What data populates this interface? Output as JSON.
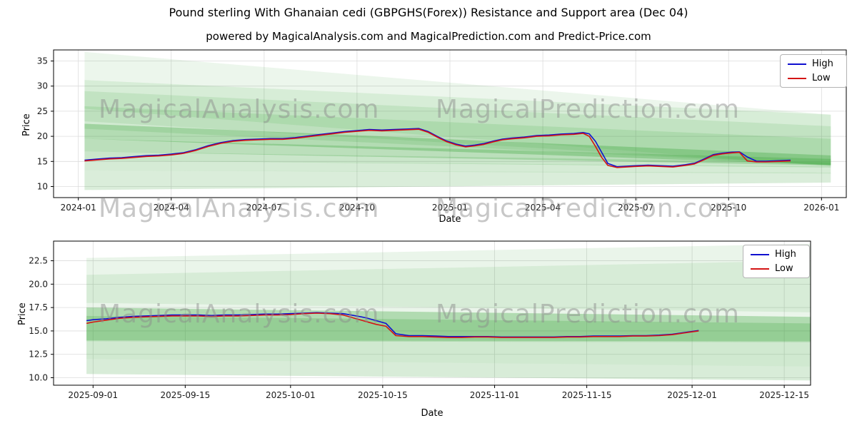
{
  "title": "Pound sterling With Ghanaian cedi (GBPGHS(Forex)) Resistance and Support area (Dec 04)",
  "subtitle": "powered by MagicalAnalysis.com and MagicalPrediction.com and Predict-Price.com",
  "watermark": {
    "analysis": "MagicalAnalysis.com",
    "prediction": "MagicalPrediction.com"
  },
  "chart_data": [
    {
      "type": "line",
      "title": "",
      "xlabel": "Date",
      "ylabel": "Price",
      "grid": true,
      "legend_position": "upper right",
      "band_color": "#30a030",
      "xlim": [
        -0.8,
        24.8
      ],
      "ylim": [
        7.8,
        37.2
      ],
      "x_ticks": [
        {
          "value": 0,
          "label": "2024-01"
        },
        {
          "value": 3,
          "label": "2024-04"
        },
        {
          "value": 6,
          "label": "2024-07"
        },
        {
          "value": 9,
          "label": "2024-10"
        },
        {
          "value": 12,
          "label": "2025-01"
        },
        {
          "value": 15,
          "label": "2025-04"
        },
        {
          "value": 18,
          "label": "2025-07"
        },
        {
          "value": 21,
          "label": "2025-10"
        },
        {
          "value": 24,
          "label": "2026-01"
        }
      ],
      "y_ticks": [
        {
          "value": 10,
          "label": "10"
        },
        {
          "value": 15,
          "label": "15"
        },
        {
          "value": 20,
          "label": "20"
        },
        {
          "value": 25,
          "label": "25"
        },
        {
          "value": 30,
          "label": "30"
        },
        {
          "value": 35,
          "label": "35"
        }
      ],
      "bands": [
        {
          "points": [
            [
              0.2,
              36.8
            ],
            [
              24.3,
              24.3
            ],
            [
              24.3,
              10.8
            ],
            [
              0.2,
              9.3
            ]
          ],
          "opacity": 0.09
        },
        {
          "points": [
            [
              0.2,
              31.2
            ],
            [
              24.3,
              24.3
            ],
            [
              24.3,
              14.0
            ],
            [
              0.2,
              25.5
            ]
          ],
          "opacity": 0.11
        },
        {
          "points": [
            [
              0.2,
              29.0
            ],
            [
              24.3,
              22.0
            ],
            [
              24.3,
              14.2
            ],
            [
              0.2,
              23.0
            ]
          ],
          "opacity": 0.12
        },
        {
          "points": [
            [
              0.2,
              26.0
            ],
            [
              24.3,
              19.5
            ],
            [
              24.3,
              14.3
            ],
            [
              0.2,
              21.5
            ]
          ],
          "opacity": 0.14
        },
        {
          "points": [
            [
              0.2,
              22.5
            ],
            [
              24.3,
              16.2
            ],
            [
              24.3,
              14.3
            ],
            [
              0.2,
              19.5
            ]
          ],
          "opacity": 0.3
        },
        {
          "points": [
            [
              0.2,
              19.5
            ],
            [
              24.3,
              15.5
            ],
            [
              24.3,
              14.2
            ],
            [
              0.2,
              17.0
            ]
          ],
          "opacity": 0.26
        },
        {
          "points": [
            [
              0.2,
              17.0
            ],
            [
              24.3,
              14.8
            ],
            [
              24.3,
              13.8
            ],
            [
              0.2,
              15.2
            ]
          ],
          "opacity": 0.18
        },
        {
          "points": [
            [
              0.2,
              15.2
            ],
            [
              24.3,
              14.0
            ],
            [
              24.3,
              12.6
            ],
            [
              0.2,
              13.2
            ]
          ],
          "opacity": 0.12
        },
        {
          "points": [
            [
              0.2,
              13.2
            ],
            [
              24.3,
              12.8
            ],
            [
              24.3,
              10.8
            ],
            [
              0.2,
              9.3
            ]
          ],
          "opacity": 0.09
        }
      ],
      "x": [
        0.2,
        0.6,
        1.0,
        1.4,
        1.8,
        2.2,
        2.6,
        3.0,
        3.4,
        3.8,
        4.2,
        4.6,
        5.0,
        5.4,
        5.8,
        6.2,
        6.6,
        7.0,
        7.4,
        7.8,
        8.2,
        8.6,
        9.0,
        9.4,
        9.8,
        10.2,
        10.6,
        11.0,
        11.3,
        11.6,
        11.9,
        12.2,
        12.5,
        12.8,
        13.1,
        13.4,
        13.7,
        14.0,
        14.4,
        14.8,
        15.2,
        15.6,
        16.0,
        16.3,
        16.5,
        16.7,
        16.9,
        17.1,
        17.4,
        17.7,
        18.0,
        18.4,
        18.8,
        19.2,
        19.6,
        19.9,
        20.2,
        20.5,
        20.8,
        21.1,
        21.35,
        21.6,
        21.9,
        22.2,
        22.6,
        23.0
      ],
      "series": [
        {
          "name": "High",
          "color": "#0f0fd0",
          "values": [
            15.25,
            15.45,
            15.65,
            15.75,
            15.95,
            16.15,
            16.25,
            16.45,
            16.75,
            17.35,
            18.15,
            18.75,
            19.15,
            19.35,
            19.45,
            19.55,
            19.55,
            19.75,
            20.05,
            20.35,
            20.65,
            20.95,
            21.15,
            21.35,
            21.25,
            21.35,
            21.45,
            21.55,
            20.95,
            19.95,
            19.05,
            18.45,
            18.05,
            18.25,
            18.55,
            19.05,
            19.45,
            19.65,
            19.85,
            20.15,
            20.25,
            20.45,
            20.55,
            20.75,
            20.5,
            19.0,
            16.8,
            14.6,
            13.95,
            14.05,
            14.15,
            14.25,
            14.15,
            14.05,
            14.35,
            14.65,
            15.45,
            16.35,
            16.65,
            16.85,
            16.9,
            15.9,
            15.05,
            15.05,
            15.15,
            15.25
          ]
        },
        {
          "name": "Low",
          "color": "#d41414",
          "values": [
            15.1,
            15.3,
            15.5,
            15.6,
            15.8,
            16.0,
            16.1,
            16.3,
            16.6,
            17.2,
            18.0,
            18.6,
            19.0,
            19.2,
            19.3,
            19.4,
            19.4,
            19.6,
            19.9,
            20.2,
            20.5,
            20.8,
            21.0,
            21.2,
            21.1,
            21.2,
            21.3,
            21.4,
            20.8,
            19.8,
            18.9,
            18.3,
            17.9,
            18.1,
            18.4,
            18.9,
            19.3,
            19.5,
            19.7,
            20.0,
            20.1,
            20.3,
            20.4,
            20.6,
            20.0,
            18.0,
            15.8,
            14.2,
            13.8,
            13.9,
            14.0,
            14.1,
            14.0,
            13.9,
            14.2,
            14.5,
            15.3,
            16.2,
            16.5,
            16.7,
            16.8,
            15.1,
            14.9,
            14.9,
            15.0,
            15.1
          ]
        }
      ]
    },
    {
      "type": "line",
      "title": "",
      "xlabel": "Date",
      "ylabel": "Price",
      "grid": true,
      "legend_position": "upper right",
      "band_color": "#30a030",
      "xlim": [
        -6,
        109
      ],
      "ylim": [
        9.2,
        24.6
      ],
      "x_ticks": [
        {
          "value": 0,
          "label": "2025-09-01"
        },
        {
          "value": 14,
          "label": "2025-09-15"
        },
        {
          "value": 30,
          "label": "2025-10-01"
        },
        {
          "value": 44,
          "label": "2025-10-15"
        },
        {
          "value": 61,
          "label": "2025-11-01"
        },
        {
          "value": 75,
          "label": "2025-11-15"
        },
        {
          "value": 91,
          "label": "2025-12-01"
        },
        {
          "value": 105,
          "label": "2025-12-15"
        }
      ],
      "y_ticks": [
        {
          "value": 10.0,
          "label": "10.0"
        },
        {
          "value": 12.5,
          "label": "12.5"
        },
        {
          "value": 15.0,
          "label": "15.0"
        },
        {
          "value": 17.5,
          "label": "17.5"
        },
        {
          "value": 20.0,
          "label": "20.0"
        },
        {
          "value": 22.5,
          "label": "22.5"
        }
      ],
      "bands": [
        {
          "points": [
            [
              -1,
              22.8
            ],
            [
              109,
              24.3
            ],
            [
              109,
              9.7
            ],
            [
              -1,
              10.4
            ]
          ],
          "opacity": 0.1
        },
        {
          "points": [
            [
              -1,
              21.0
            ],
            [
              109,
              22.5
            ],
            [
              109,
              17.0
            ],
            [
              -1,
              18.0
            ]
          ],
          "opacity": 0.1
        },
        {
          "points": [
            [
              -1,
              17.5
            ],
            [
              109,
              16.5
            ],
            [
              109,
              13.8
            ],
            [
              -1,
              13.9
            ]
          ],
          "opacity": 0.3
        },
        {
          "points": [
            [
              -1,
              16.6
            ],
            [
              109,
              15.8
            ],
            [
              109,
              13.9
            ],
            [
              -1,
              14.0
            ]
          ],
          "opacity": 0.22
        },
        {
          "points": [
            [
              -1,
              13.9
            ],
            [
              109,
              13.8
            ],
            [
              109,
              11.2
            ],
            [
              -1,
              12.0
            ]
          ],
          "opacity": 0.14
        },
        {
          "points": [
            [
              -1,
              12.0
            ],
            [
              109,
              11.2
            ],
            [
              109,
              9.7
            ],
            [
              -1,
              10.4
            ]
          ],
          "opacity": 0.09
        }
      ],
      "x": [
        -1,
        0,
        2,
        4,
        6,
        8,
        10,
        12,
        14,
        16,
        18,
        20,
        22,
        24,
        26,
        28,
        30,
        32,
        34,
        36,
        38,
        40,
        41.5,
        43,
        44.5,
        46,
        48,
        50,
        52,
        54,
        56,
        58,
        60,
        62,
        64,
        66,
        68,
        70,
        72,
        74,
        76,
        78,
        80,
        82,
        84,
        86,
        88,
        90,
        92
      ],
      "series": [
        {
          "name": "High",
          "color": "#0f0fd0",
          "values": [
            16.1,
            16.2,
            16.3,
            16.45,
            16.55,
            16.6,
            16.65,
            16.7,
            16.7,
            16.7,
            16.65,
            16.7,
            16.7,
            16.75,
            16.8,
            16.8,
            16.85,
            16.9,
            16.95,
            16.9,
            16.85,
            16.6,
            16.4,
            16.1,
            15.8,
            14.7,
            14.5,
            14.5,
            14.45,
            14.4,
            14.4,
            14.4,
            14.4,
            14.35,
            14.35,
            14.35,
            14.35,
            14.35,
            14.4,
            14.4,
            14.45,
            14.45,
            14.45,
            14.5,
            14.5,
            14.55,
            14.65,
            14.85,
            15.05
          ]
        },
        {
          "name": "Low",
          "color": "#d41414",
          "values": [
            15.8,
            15.95,
            16.15,
            16.35,
            16.45,
            16.5,
            16.55,
            16.6,
            16.6,
            16.6,
            16.55,
            16.6,
            16.6,
            16.65,
            16.7,
            16.7,
            16.75,
            16.85,
            16.9,
            16.85,
            16.7,
            16.3,
            16.0,
            15.7,
            15.5,
            14.5,
            14.4,
            14.4,
            14.35,
            14.3,
            14.3,
            14.35,
            14.35,
            14.3,
            14.3,
            14.3,
            14.3,
            14.3,
            14.35,
            14.35,
            14.4,
            14.4,
            14.4,
            14.45,
            14.45,
            14.5,
            14.6,
            14.8,
            15.0
          ]
        }
      ]
    }
  ]
}
